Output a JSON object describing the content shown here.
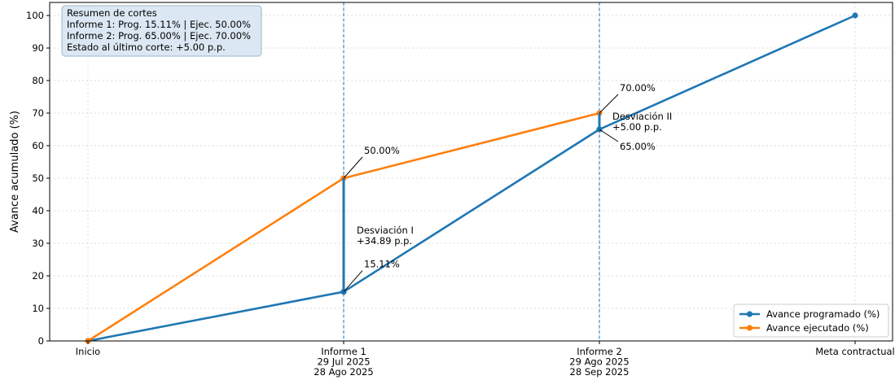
{
  "chart_data": {
    "type": "line",
    "ylabel": "Avance acumulado (%)",
    "ylim": [
      0,
      104
    ],
    "yticks": [
      0,
      10,
      20,
      30,
      40,
      50,
      60,
      70,
      80,
      90,
      100
    ],
    "grid": true,
    "legend_position": "bottom-right",
    "categories": [
      {
        "lines": [
          "Inicio"
        ]
      },
      {
        "lines": [
          "Informe 1",
          "29 Jul 2025",
          "28 Ago 2025"
        ]
      },
      {
        "lines": [
          "Informe 2",
          "29 Ago 2025",
          "28 Sep 2025"
        ]
      },
      {
        "lines": [
          "Meta contractual"
        ]
      }
    ],
    "cutoff_lines_at": [
      1,
      2
    ],
    "series": [
      {
        "name": "Avance programado (%)",
        "color": "#1f77b4",
        "x": [
          0,
          1,
          2,
          3
        ],
        "values": [
          0,
          15.11,
          65.0,
          100
        ]
      },
      {
        "name": "Avance ejecutado (%)",
        "color": "#ff7f0e",
        "x": [
          0,
          1,
          2
        ],
        "values": [
          0,
          50.0,
          70.0
        ]
      }
    ],
    "deviations": [
      {
        "x": 1,
        "from": 15.11,
        "to": 50.0,
        "label_lines": [
          "Desviación I",
          "+34.89 p.p."
        ]
      },
      {
        "x": 2,
        "from": 65.0,
        "to": 70.0,
        "label_lines": [
          "Desviación II",
          "+5.00 p.p."
        ]
      }
    ],
    "point_annotations": [
      {
        "x": 1,
        "y": 50.0,
        "text": "50.00%"
      },
      {
        "x": 1,
        "y": 15.11,
        "text": "15.11%"
      },
      {
        "x": 2,
        "y": 70.0,
        "text": "70.00%"
      },
      {
        "x": 2,
        "y": 65.0,
        "text": "65.00%"
      }
    ],
    "summary_box": {
      "lines": [
        "Resumen de cortes",
        "Informe 1: Prog. 15.11% | Ejec. 50.00%",
        "Informe 2: Prog. 65.00% | Ejec. 70.00%",
        "Estado al último corte: +5.00 p.p."
      ]
    }
  }
}
